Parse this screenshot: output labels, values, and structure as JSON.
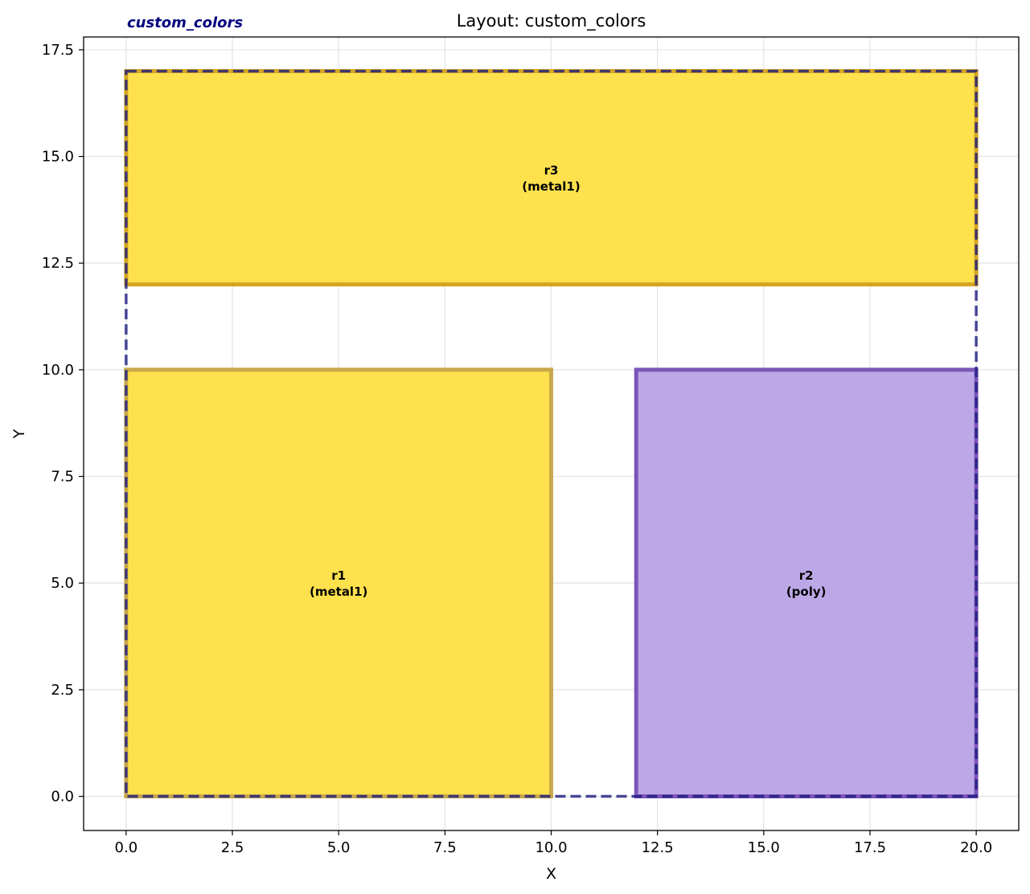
{
  "chart_data": {
    "type": "layout",
    "title": "Layout: custom_colors",
    "cell_tag": "custom_colors",
    "xlabel": "X",
    "ylabel": "Y",
    "xlim": [
      -1.0,
      21.0
    ],
    "ylim": [
      -0.8,
      17.8
    ],
    "xticks": [
      0.0,
      2.5,
      5.0,
      7.5,
      10.0,
      12.5,
      15.0,
      17.5,
      20.0
    ],
    "yticks": [
      0.0,
      2.5,
      5.0,
      7.5,
      10.0,
      12.5,
      15.0,
      17.5
    ],
    "xtick_labels": [
      "0.0",
      "2.5",
      "5.0",
      "7.5",
      "10.0",
      "12.5",
      "15.0",
      "17.5",
      "20.0"
    ],
    "ytick_labels": [
      "0.0",
      "2.5",
      "5.0",
      "7.5",
      "10.0",
      "12.5",
      "15.0",
      "17.5"
    ],
    "grid": true,
    "rects": [
      {
        "name": "r1",
        "layer": "metal1",
        "label": [
          "r1",
          "(metal1)"
        ],
        "x0": 0,
        "y0": 0,
        "x1": 10,
        "y1": 10,
        "fill": "#ffe14d",
        "stroke": "#c9a84a"
      },
      {
        "name": "r2",
        "layer": "poly",
        "label": [
          "r2",
          "(poly)"
        ],
        "x0": 12,
        "y0": 0,
        "x1": 20,
        "y1": 10,
        "fill": "#bca8e6",
        "stroke": "#7d55b8"
      },
      {
        "name": "r3",
        "layer": "metal1",
        "label": [
          "r3",
          "(metal1)"
        ],
        "x0": 0,
        "y0": 12,
        "x1": 20,
        "y1": 17,
        "fill": "#ffe14d",
        "stroke": "#d4a520"
      }
    ],
    "bounding_box": {
      "x0": 0,
      "y0": 0,
      "x1": 20,
      "y1": 17,
      "stroke": "#1a1a80",
      "dashed": true
    },
    "colors": {
      "metal1_fill": "#ffe14d",
      "poly_fill": "#bca8e6",
      "bbox_stroke": "#1a1a80",
      "cell_tag": "#00007f"
    }
  }
}
